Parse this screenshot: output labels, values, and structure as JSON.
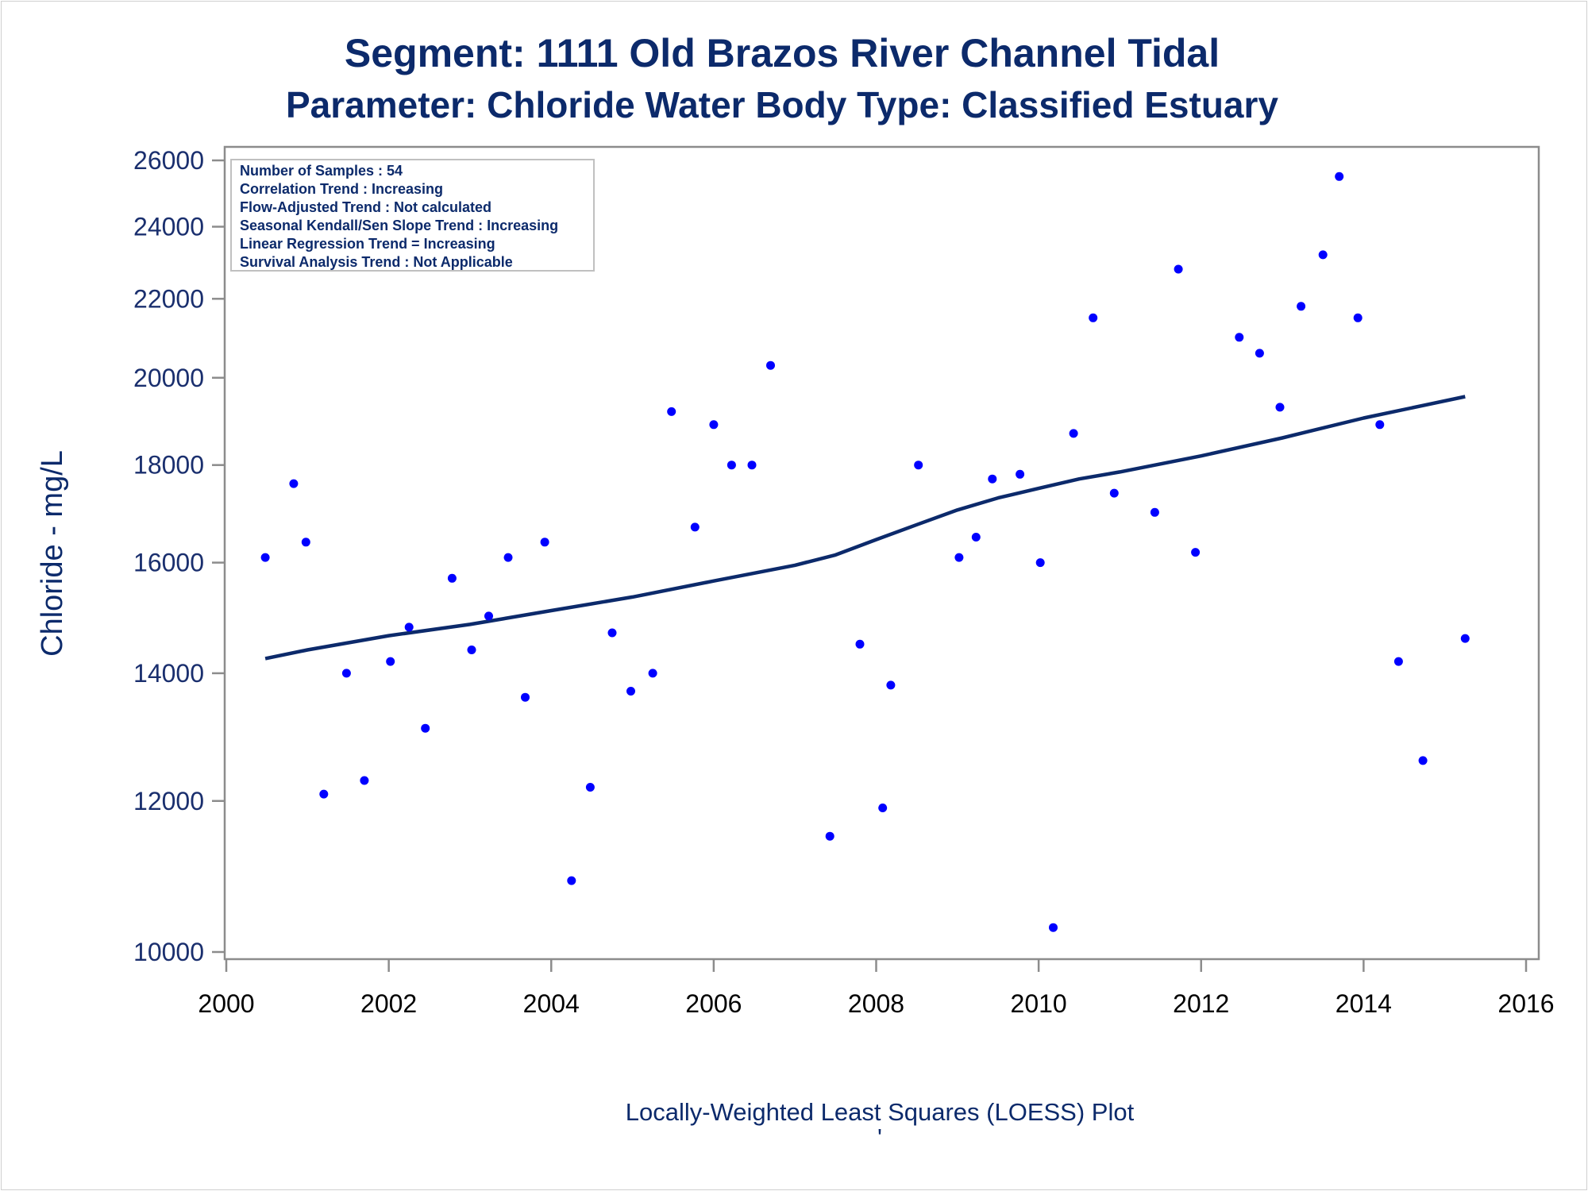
{
  "chart_data": {
    "type": "scatter",
    "title": "Segment: 1111  Old Brazos River Channel Tidal",
    "subtitle": "Parameter: Chloride   Water Body Type: Classified Estuary",
    "xlabel": "",
    "ylabel": "Chloride - mg/L",
    "footnote": "Locally-Weighted Least Squares (LOESS) Plot",
    "footnote_mark": "'",
    "xlim": [
      2000,
      2016
    ],
    "ylim": [
      10000,
      26000
    ],
    "y_scale": "log",
    "grid": false,
    "x_ticks": [
      2000,
      2002,
      2004,
      2006,
      2008,
      2010,
      2012,
      2014,
      2016
    ],
    "y_ticks": [
      10000,
      12000,
      14000,
      16000,
      18000,
      20000,
      22000,
      24000,
      26000
    ],
    "stats_box": {
      "placement": "top-left",
      "lines": [
        "Number of Samples : 54",
        "Correlation Trend : Increasing",
        "Flow-Adjusted Trend : Not calculated",
        "Seasonal Kendall/Sen Slope Trend : Increasing",
        "Linear Regression Trend = Increasing",
        "Survival Analysis Trend : Not Applicable"
      ]
    },
    "points": [
      [
        2000.48,
        16100
      ],
      [
        2000.83,
        17600
      ],
      [
        2000.98,
        16400
      ],
      [
        2001.2,
        12100
      ],
      [
        2001.48,
        14000
      ],
      [
        2001.7,
        12300
      ],
      [
        2002.02,
        14200
      ],
      [
        2002.25,
        14800
      ],
      [
        2002.45,
        13100
      ],
      [
        2002.78,
        15700
      ],
      [
        2003.02,
        14400
      ],
      [
        2003.23,
        15000
      ],
      [
        2003.47,
        16100
      ],
      [
        2003.68,
        13600
      ],
      [
        2003.92,
        16400
      ],
      [
        2004.25,
        10900
      ],
      [
        2004.48,
        12200
      ],
      [
        2004.75,
        14700
      ],
      [
        2004.98,
        13700
      ],
      [
        2005.25,
        14000
      ],
      [
        2005.48,
        19200
      ],
      [
        2005.77,
        16700
      ],
      [
        2006.0,
        18900
      ],
      [
        2006.22,
        18000
      ],
      [
        2006.47,
        18000
      ],
      [
        2006.7,
        20300
      ],
      [
        2007.43,
        11500
      ],
      [
        2007.8,
        14500
      ],
      [
        2008.08,
        11900
      ],
      [
        2008.18,
        13800
      ],
      [
        2008.52,
        18000
      ],
      [
        2009.02,
        16100
      ],
      [
        2009.23,
        16500
      ],
      [
        2009.43,
        17700
      ],
      [
        2009.77,
        17800
      ],
      [
        2010.02,
        16000
      ],
      [
        2010.18,
        10300
      ],
      [
        2010.43,
        18700
      ],
      [
        2010.67,
        21500
      ],
      [
        2010.93,
        17400
      ],
      [
        2011.43,
        17000
      ],
      [
        2011.72,
        22800
      ],
      [
        2011.93,
        16200
      ],
      [
        2012.47,
        21000
      ],
      [
        2012.72,
        20600
      ],
      [
        2012.97,
        19300
      ],
      [
        2013.23,
        21800
      ],
      [
        2013.5,
        23200
      ],
      [
        2013.7,
        25500
      ],
      [
        2013.93,
        21500
      ],
      [
        2014.2,
        18900
      ],
      [
        2014.43,
        14200
      ],
      [
        2014.73,
        12600
      ],
      [
        2015.25,
        14600
      ]
    ],
    "loess_line": [
      [
        2000.48,
        14250
      ],
      [
        2001.0,
        14400
      ],
      [
        2002.0,
        14650
      ],
      [
        2003.0,
        14850
      ],
      [
        2004.0,
        15100
      ],
      [
        2005.0,
        15350
      ],
      [
        2006.0,
        15650
      ],
      [
        2007.0,
        15950
      ],
      [
        2007.5,
        16150
      ],
      [
        2008.0,
        16450
      ],
      [
        2008.5,
        16750
      ],
      [
        2009.0,
        17050
      ],
      [
        2009.5,
        17300
      ],
      [
        2010.0,
        17500
      ],
      [
        2010.5,
        17700
      ],
      [
        2011.0,
        17850
      ],
      [
        2012.0,
        18200
      ],
      [
        2013.0,
        18600
      ],
      [
        2014.0,
        19050
      ],
      [
        2015.25,
        19550
      ]
    ],
    "colors": {
      "title": "#0c2a6b",
      "axis_text": "#0c2a6b",
      "tick_label": "#1a2f6e",
      "points": "#0000ff",
      "loess_line": "#0c2a6b",
      "frame": "#8c8c8c",
      "stats_border": "#c0c0c0"
    }
  }
}
